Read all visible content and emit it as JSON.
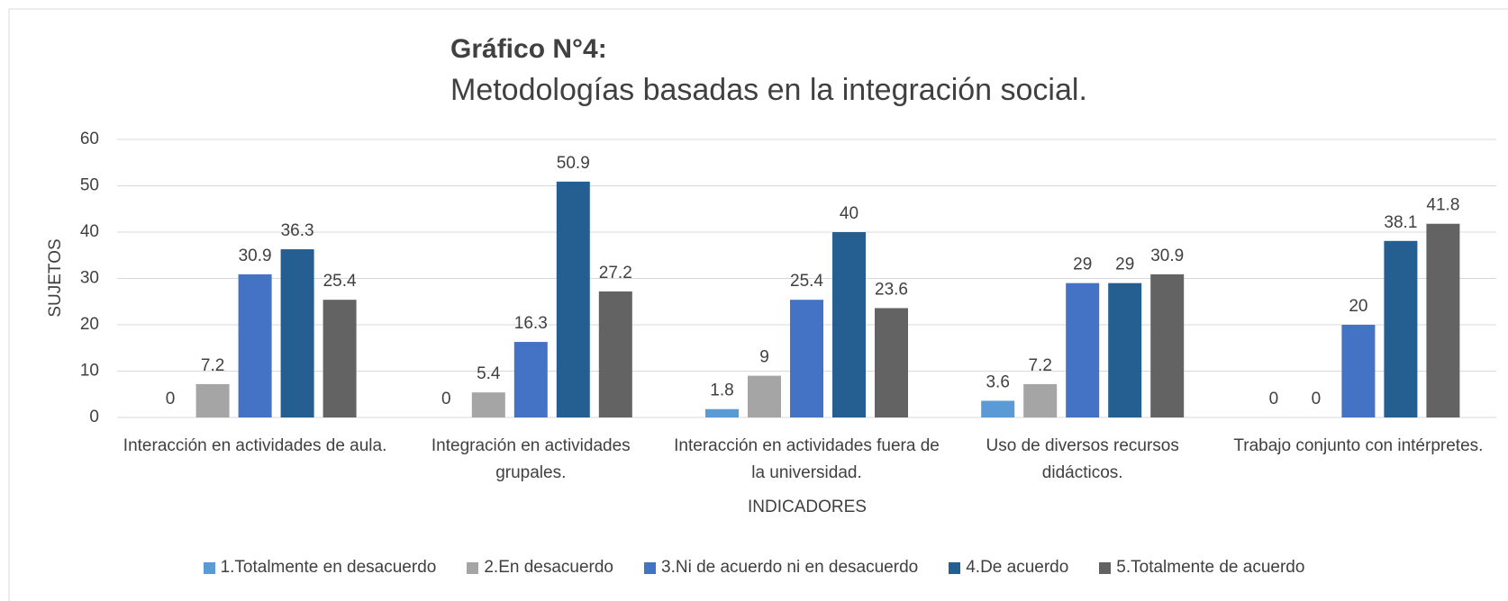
{
  "chart_data": {
    "type": "bar",
    "title": "Gráfico N°4:",
    "subtitle": "Metodologías basadas en la integración social.",
    "y_label": "SUJETOS",
    "x_label": "INDICADORES",
    "categories": [
      "Interacción en  actividades de aula.",
      "Integración en actividades grupales.",
      "Interacción en actividades fuera de la universidad.",
      "Uso de diversos recursos didácticos.",
      "Trabajo conjunto con intérpretes."
    ],
    "series": [
      {
        "name": "1.Totalmente en desacuerdo",
        "color": "#5b9bd5",
        "values": [
          0,
          0,
          1.8,
          3.6,
          0
        ]
      },
      {
        "name": "2.En desacuerdo",
        "color": "#a5a5a5",
        "values": [
          7.2,
          5.4,
          9,
          7.2,
          0
        ]
      },
      {
        "name": "3.Ni de acuerdo ni en desacuerdo",
        "color": "#4472c4",
        "values": [
          30.9,
          16.3,
          25.4,
          29,
          20
        ]
      },
      {
        "name": "4.De acuerdo",
        "color": "#255e91",
        "values": [
          36.3,
          50.9,
          40,
          29,
          38.1
        ]
      },
      {
        "name": "5.Totalmente de acuerdo",
        "color": "#636363",
        "values": [
          25.4,
          27.2,
          23.6,
          30.9,
          41.8
        ]
      }
    ],
    "ylim": [
      0,
      60
    ],
    "yticks": [
      0,
      10,
      20,
      30,
      40,
      50,
      60
    ],
    "grid": true,
    "legend": "bottom"
  }
}
